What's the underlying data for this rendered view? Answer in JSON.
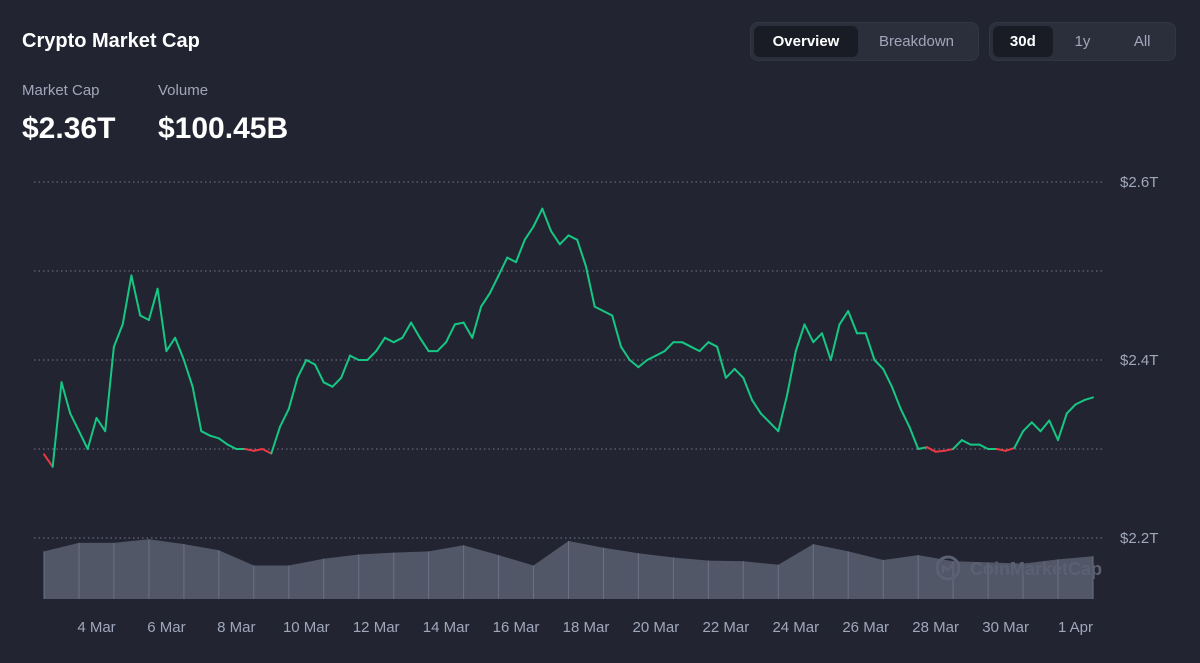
{
  "header": {
    "title": "Crypto Market Cap",
    "view_tabs": [
      {
        "label": "Overview",
        "active": true
      },
      {
        "label": "Breakdown",
        "active": false
      }
    ],
    "range_tabs": [
      {
        "label": "30d",
        "active": true
      },
      {
        "label": "1y",
        "active": false
      },
      {
        "label": "All",
        "active": false
      }
    ]
  },
  "stats": {
    "market_cap_label": "Market Cap",
    "market_cap_value": "$2.36T",
    "volume_label": "Volume",
    "volume_value": "$100.45B"
  },
  "watermark": {
    "text": "CoinMarketCap",
    "icon": "coinmarketcap-logo-icon"
  },
  "colors": {
    "background": "#222531",
    "line_up": "#16c784",
    "line_down": "#ea3943",
    "volume": "#5b6072",
    "grid": "#858ca2"
  },
  "chart_data": {
    "type": "line",
    "title": "",
    "xlabel": "",
    "ylabel": "",
    "unit": "USD trillions",
    "x_ticks": [
      "4 Mar",
      "6 Mar",
      "8 Mar",
      "10 Mar",
      "12 Mar",
      "14 Mar",
      "16 Mar",
      "18 Mar",
      "20 Mar",
      "22 Mar",
      "24 Mar",
      "26 Mar",
      "28 Mar",
      "30 Mar",
      "1 Apr"
    ],
    "x_range": [
      "2 Mar 12:00",
      "1 Apr 12:00"
    ],
    "y_ticks": [
      {
        "value": 2.6,
        "label": "$2.6T"
      },
      {
        "value": 2.4,
        "label": "$2.4T"
      },
      {
        "value": 2.2,
        "label": "$2.2T"
      }
    ],
    "ylim": [
      2.2,
      2.6
    ],
    "grid": true,
    "baseline": 2.3,
    "series": [
      {
        "x": [
          "2 Mar 12:00",
          "2 Mar 18:00",
          "3 Mar 00:00",
          "3 Mar 06:00",
          "3 Mar 12:00",
          "3 Mar 18:00",
          "4 Mar 00:00",
          "4 Mar 06:00",
          "4 Mar 12:00",
          "4 Mar 18:00",
          "5 Mar 00:00",
          "5 Mar 06:00",
          "5 Mar 12:00",
          "5 Mar 18:00",
          "6 Mar 00:00",
          "6 Mar 06:00",
          "6 Mar 12:00",
          "6 Mar 18:00",
          "7 Mar 00:00",
          "7 Mar 06:00",
          "7 Mar 12:00",
          "7 Mar 18:00",
          "8 Mar 00:00",
          "8 Mar 06:00",
          "8 Mar 12:00",
          "8 Mar 18:00",
          "9 Mar 00:00",
          "9 Mar 06:00",
          "9 Mar 12:00",
          "9 Mar 18:00",
          "10 Mar 00:00",
          "10 Mar 06:00",
          "10 Mar 12:00",
          "10 Mar 18:00",
          "11 Mar 00:00",
          "11 Mar 06:00",
          "11 Mar 12:00",
          "11 Mar 18:00",
          "12 Mar 00:00",
          "12 Mar 06:00",
          "12 Mar 12:00",
          "12 Mar 18:00",
          "13 Mar 00:00",
          "13 Mar 06:00",
          "13 Mar 12:00",
          "13 Mar 18:00",
          "14 Mar 00:00",
          "14 Mar 06:00",
          "14 Mar 12:00",
          "14 Mar 18:00",
          "15 Mar 00:00",
          "15 Mar 06:00",
          "15 Mar 12:00",
          "15 Mar 18:00",
          "16 Mar 00:00",
          "16 Mar 06:00",
          "16 Mar 12:00",
          "16 Mar 18:00",
          "17 Mar 00:00",
          "17 Mar 06:00",
          "17 Mar 12:00",
          "17 Mar 18:00",
          "18 Mar 00:00",
          "18 Mar 06:00",
          "18 Mar 12:00",
          "18 Mar 18:00",
          "19 Mar 00:00",
          "19 Mar 06:00",
          "19 Mar 12:00",
          "19 Mar 18:00",
          "20 Mar 00:00",
          "20 Mar 06:00",
          "20 Mar 12:00",
          "20 Mar 18:00",
          "21 Mar 00:00",
          "21 Mar 06:00",
          "21 Mar 12:00",
          "21 Mar 18:00",
          "22 Mar 00:00",
          "22 Mar 06:00",
          "22 Mar 12:00",
          "22 Mar 18:00",
          "23 Mar 00:00",
          "23 Mar 06:00",
          "23 Mar 12:00",
          "23 Mar 18:00",
          "24 Mar 00:00",
          "24 Mar 06:00",
          "24 Mar 12:00",
          "24 Mar 18:00",
          "25 Mar 00:00",
          "25 Mar 06:00",
          "25 Mar 12:00",
          "25 Mar 18:00",
          "26 Mar 00:00",
          "26 Mar 06:00",
          "26 Mar 12:00",
          "26 Mar 18:00",
          "27 Mar 00:00",
          "27 Mar 06:00",
          "27 Mar 12:00",
          "27 Mar 18:00",
          "28 Mar 00:00",
          "28 Mar 06:00",
          "28 Mar 12:00",
          "28 Mar 18:00",
          "29 Mar 00:00",
          "29 Mar 06:00",
          "29 Mar 12:00",
          "29 Mar 18:00",
          "30 Mar 00:00",
          "30 Mar 06:00",
          "30 Mar 12:00",
          "30 Mar 18:00",
          "31 Mar 00:00",
          "31 Mar 06:00",
          "31 Mar 12:00",
          "31 Mar 18:00",
          "1 Apr 00:00",
          "1 Apr 06:00",
          "1 Apr 12:00"
        ],
        "y": [
          2.294,
          2.28,
          2.375,
          2.34,
          2.32,
          2.3,
          2.335,
          2.32,
          2.415,
          2.44,
          2.495,
          2.45,
          2.445,
          2.48,
          2.41,
          2.425,
          2.4,
          2.37,
          2.32,
          2.315,
          2.312,
          2.305,
          2.3,
          2.3,
          2.298,
          2.3,
          2.295,
          2.325,
          2.345,
          2.38,
          2.4,
          2.395,
          2.375,
          2.37,
          2.38,
          2.405,
          2.4,
          2.4,
          2.41,
          2.425,
          2.42,
          2.425,
          2.442,
          2.425,
          2.41,
          2.41,
          2.42,
          2.44,
          2.442,
          2.425,
          2.46,
          2.475,
          2.495,
          2.515,
          2.51,
          2.535,
          2.55,
          2.57,
          2.545,
          2.53,
          2.54,
          2.535,
          2.505,
          2.46,
          2.455,
          2.45,
          2.415,
          2.4,
          2.392,
          2.4,
          2.405,
          2.41,
          2.42,
          2.42,
          2.415,
          2.41,
          2.42,
          2.415,
          2.38,
          2.39,
          2.38,
          2.355,
          2.34,
          2.33,
          2.32,
          2.36,
          2.41,
          2.44,
          2.42,
          2.43,
          2.4,
          2.44,
          2.455,
          2.43,
          2.43,
          2.4,
          2.39,
          2.37,
          2.345,
          2.325,
          2.3,
          2.302,
          2.297,
          2.298,
          2.3,
          2.31,
          2.305,
          2.305,
          2.3,
          2.3,
          2.298,
          2.301,
          2.32,
          2.33,
          2.32,
          2.332,
          2.31,
          2.34,
          2.35,
          2.355,
          2.358
        ]
      }
    ],
    "volume": {
      "x": [
        "2 Mar 12:00",
        "3 Mar 12:00",
        "4 Mar 12:00",
        "5 Mar 12:00",
        "6 Mar 12:00",
        "7 Mar 12:00",
        "8 Mar 12:00",
        "9 Mar 12:00",
        "10 Mar 12:00",
        "11 Mar 12:00",
        "12 Mar 12:00",
        "13 Mar 12:00",
        "14 Mar 12:00",
        "15 Mar 12:00",
        "16 Mar 12:00",
        "17 Mar 12:00",
        "18 Mar 12:00",
        "19 Mar 12:00",
        "20 Mar 12:00",
        "21 Mar 12:00",
        "22 Mar 12:00",
        "23 Mar 12:00",
        "24 Mar 12:00",
        "25 Mar 12:00",
        "26 Mar 12:00",
        "27 Mar 12:00",
        "28 Mar 12:00",
        "29 Mar 12:00",
        "30 Mar 12:00",
        "31 Mar 12:00",
        "1 Apr 12:00"
      ],
      "values": [
        0.78,
        0.92,
        0.92,
        0.98,
        0.9,
        0.8,
        0.55,
        0.55,
        0.66,
        0.73,
        0.76,
        0.78,
        0.88,
        0.72,
        0.55,
        0.95,
        0.84,
        0.75,
        0.68,
        0.63,
        0.62,
        0.56,
        0.9,
        0.78,
        0.64,
        0.72,
        0.62,
        0.6,
        0.58,
        0.65,
        0.7
      ]
    }
  }
}
